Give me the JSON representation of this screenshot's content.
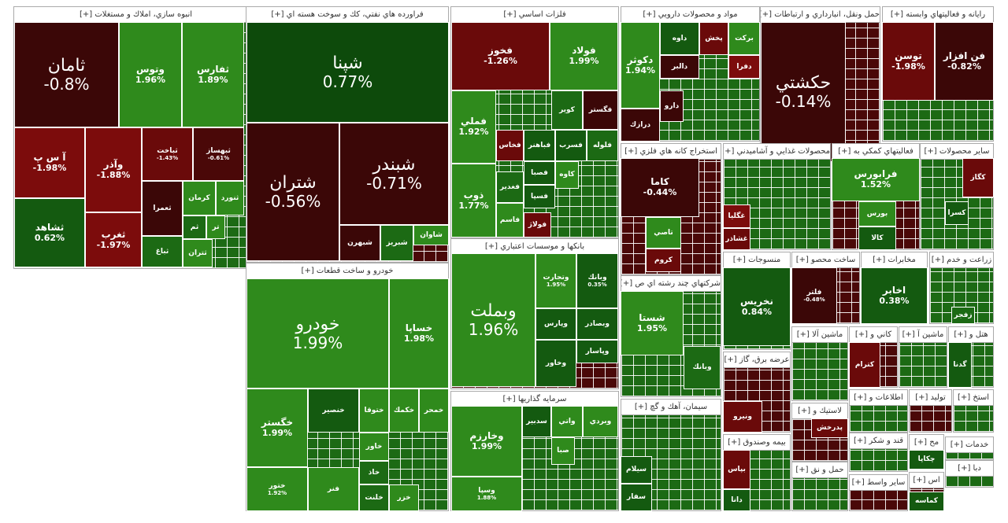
{
  "sectors": [
    {
      "title": "انبوه سازي، املاك و مستغلات [+]",
      "tiles": [
        {
          "name": "ثامان",
          "change": "-0.8%",
          "color": "#3b0707"
        },
        {
          "name": "وتوس",
          "change": "1.96%",
          "color": "#2f8a1c"
        },
        {
          "name": "ثفارس",
          "change": "1.89%",
          "color": "#2f8a1c"
        },
        {
          "name": "آ س پ",
          "change": "-1.98%",
          "color": "#7c0c0c"
        },
        {
          "name": "ثشاهد",
          "change": "0.62%",
          "color": "#145a10"
        },
        {
          "name": "وآذر",
          "change": "-1.88%",
          "color": "#7c0c0c"
        },
        {
          "name": "ثغرب",
          "change": "-1.97%",
          "color": "#7c0c0c"
        },
        {
          "name": "ثباخت",
          "change": "-1.43%",
          "color": "#6a0a0a"
        },
        {
          "name": "ثبهساز",
          "change": "-0.61%",
          "color": "#4a0808"
        },
        {
          "name": "ثعمرا",
          "color": "#3b0707"
        },
        {
          "name": "كرمان",
          "color": "#2f8a1c"
        },
        {
          "name": "ثنورد",
          "color": "#2f8a1c"
        },
        {
          "name": "ثم",
          "color": "#1c6a14"
        },
        {
          "name": "تر",
          "color": "#2f8a1c"
        },
        {
          "name": "ثباغ",
          "color": "#1c6a14"
        },
        {
          "name": "ثتران",
          "color": "#2f8a1c"
        }
      ]
    },
    {
      "title": "فراورده هاي نفتي، كك و سوخت هسته اي [+]",
      "tiles": [
        {
          "name": "شپنا",
          "change": "0.77%",
          "color": "#0d4a0b"
        },
        {
          "name": "شتران",
          "change": "-0.56%",
          "color": "#3b0707"
        },
        {
          "name": "شبندر",
          "change": "-0.71%",
          "color": "#3b0707"
        },
        {
          "name": "شبهرن",
          "color": "#3b0707"
        },
        {
          "name": "شبريز",
          "color": "#1c6a14"
        },
        {
          "name": "شاوان",
          "color": "#2f8a1c"
        }
      ]
    },
    {
      "title": "خودرو و ساخت قطعات [+]",
      "tiles": [
        {
          "name": "خودرو",
          "change": "1.99%",
          "color": "#2f8a1c"
        },
        {
          "name": "خساپا",
          "change": "1.98%",
          "color": "#2f8a1c"
        },
        {
          "name": "خگستر",
          "change": "1.99%",
          "color": "#2f8a1c"
        },
        {
          "name": "خنصير",
          "color": "#145a10"
        },
        {
          "name": "ختوقا",
          "color": "#2f8a1c"
        },
        {
          "name": "خكمك",
          "color": "#2f8a1c"
        },
        {
          "name": "خمحر",
          "color": "#2f8a1c"
        },
        {
          "name": "خاور",
          "color": "#2f8a1c"
        },
        {
          "name": "خاذ",
          "color": "#1c6a14"
        },
        {
          "name": "خلنت",
          "color": "#1c6a14"
        },
        {
          "name": "فنر",
          "color": "#2f8a1c"
        },
        {
          "name": "خزر",
          "color": "#2f8a1c"
        },
        {
          "name": "ختور",
          "change": "1.92%",
          "color": "#2f8a1c"
        }
      ]
    },
    {
      "title": "فلزات اساسي [+]",
      "tiles": [
        {
          "name": "فخوز",
          "change": "-1.26%",
          "color": "#6a0a0a"
        },
        {
          "name": "فولاد",
          "change": "1.99%",
          "color": "#2f8a1c"
        },
        {
          "name": "فملي",
          "change": "1.92%",
          "color": "#2f8a1c"
        },
        {
          "name": "ذوب",
          "change": "1.77%",
          "color": "#2f8a1c"
        },
        {
          "name": "كوير",
          "color": "#1c6a14"
        },
        {
          "name": "فگستر",
          "color": "#3b0707"
        },
        {
          "name": "فخاس",
          "color": "#6a0a0a"
        },
        {
          "name": "فباهنر",
          "color": "#145a10"
        },
        {
          "name": "فسرب",
          "color": "#145a10"
        },
        {
          "name": "فلوله",
          "color": "#1c6a14"
        },
        {
          "name": "فغدير",
          "color": "#1c6a14"
        },
        {
          "name": "فصبا",
          "color": "#145a10"
        },
        {
          "name": "كاوه",
          "color": "#2f8a1c"
        },
        {
          "name": "فسپا",
          "color": "#145a10"
        },
        {
          "name": "فاسم",
          "color": "#2f8a1c"
        },
        {
          "name": "فولاژ",
          "color": "#6a0a0a"
        }
      ]
    },
    {
      "title": "بانكها و موسسات اعتباري [+]",
      "tiles": [
        {
          "name": "وبملت",
          "change": "1.96%",
          "color": "#2f8a1c"
        },
        {
          "name": "وتجارت",
          "change": "1.95%",
          "color": "#2f8a1c"
        },
        {
          "name": "وبانك",
          "change": "0.35%",
          "color": "#145a10"
        },
        {
          "name": "وپارس",
          "color": "#145a10"
        },
        {
          "name": "وبصادر",
          "color": "#145a10"
        },
        {
          "name": "وپاسار",
          "color": "#145a10"
        },
        {
          "name": "وخاور",
          "color": "#145a10"
        }
      ]
    },
    {
      "title": "سرمايه گذاريها [+]",
      "tiles": [
        {
          "name": "وخارزم",
          "change": "1.99%",
          "color": "#2f8a1c"
        },
        {
          "name": "وسپا",
          "change": "1.88%",
          "color": "#2f8a1c"
        },
        {
          "name": "سدبير",
          "color": "#145a10"
        },
        {
          "name": "واتي",
          "color": "#2f8a1c"
        },
        {
          "name": "وبردي",
          "color": "#2f8a1c"
        },
        {
          "name": "صبا",
          "color": "#2f8a1c"
        }
      ]
    },
    {
      "title": "مواد و محصولات دارويي [+]",
      "tiles": [
        {
          "name": "دكوثر",
          "change": "1.94%",
          "color": "#2f8a1c"
        },
        {
          "name": "داوه",
          "color": "#145a10"
        },
        {
          "name": "پخش",
          "color": "#6a0a0a"
        },
        {
          "name": "بركت",
          "color": "#2f8a1c"
        },
        {
          "name": "دالبر",
          "color": "#3b0707"
        },
        {
          "name": "دفرا",
          "color": "#7c0c0c"
        },
        {
          "name": "درازك",
          "color": "#3b0707"
        },
        {
          "name": "دارو",
          "color": "#3b0707"
        }
      ]
    },
    {
      "title": "استخراج كانه هاي فلزي [+]",
      "tiles": [
        {
          "name": "كاما",
          "change": "-0.44%",
          "color": "#3b0707"
        },
        {
          "name": "تاصي",
          "color": "#2f8a1c"
        },
        {
          "name": "كروم",
          "color": "#6a0a0a"
        }
      ]
    },
    {
      "title": "شركتهاي چند رشته اي ص [+]",
      "tiles": [
        {
          "name": "شستا",
          "change": "1.95%",
          "color": "#2f8a1c"
        },
        {
          "name": "وبانك",
          "color": "#1c6a14"
        }
      ]
    },
    {
      "title": "سيمان، آهك و گچ [+]",
      "tiles": [
        {
          "name": "سيلام",
          "color": "#145a10"
        },
        {
          "name": "سفار",
          "color": "#145a10"
        }
      ]
    },
    {
      "title": "حمل ونقل، انبارداري و ارتباطات [+]",
      "tiles": [
        {
          "name": "حكشتي",
          "change": "-0.14%",
          "color": "#3b0707"
        }
      ]
    },
    {
      "title": "رايانه و فعاليتهاي وابسته [+]",
      "tiles": [
        {
          "name": "توسن",
          "change": "-1.98%",
          "color": "#6a0a0a"
        },
        {
          "name": "فن افزار",
          "change": "-0.82%",
          "color": "#3b0707"
        }
      ]
    },
    {
      "title": "محصولات غذايي و آشاميدني [+]",
      "tiles": [
        {
          "name": "غگليا",
          "color": "#7c0c0c"
        },
        {
          "name": "غشاذر",
          "color": "#6a0a0a"
        }
      ]
    },
    {
      "title": "فعاليتهاي كمكي به [+]",
      "tiles": [
        {
          "name": "فرابورس",
          "change": "1.52%",
          "color": "#2f8a1c"
        },
        {
          "name": "بورس",
          "color": "#2f8a1c"
        },
        {
          "name": "كالا",
          "color": "#145a10"
        }
      ]
    },
    {
      "title": "ساير محصولات [+]",
      "tiles": [
        {
          "name": "كگاز",
          "color": "#6a0a0a"
        },
        {
          "name": "كسرا",
          "color": "#145a10"
        }
      ]
    },
    {
      "title": "منسوجات [+]",
      "tiles": [
        {
          "name": "نخريس",
          "change": "0.84%",
          "color": "#145a10"
        }
      ]
    },
    {
      "title": "ساخت محصو [+]",
      "tiles": [
        {
          "name": "فلتر",
          "change": "-0.48%",
          "color": "#3b0707"
        }
      ]
    },
    {
      "title": "مخابرات [+]",
      "tiles": [
        {
          "name": "اخابر",
          "change": "0.38%",
          "color": "#145a10"
        }
      ]
    },
    {
      "title": "زراعت و خدم [+]",
      "tiles": [
        {
          "name": "زفجر",
          "color": "#1c6a14"
        }
      ]
    },
    {
      "title": "عرضه برق، گاز [+]",
      "tiles": [
        {
          "name": "ونيرو",
          "color": "#6a0a0a"
        }
      ]
    },
    {
      "title": "بيمه وصندوق [+]",
      "tiles": [
        {
          "name": "بپاس",
          "color": "#6a0a0a"
        },
        {
          "name": "دانا",
          "color": "#145a10"
        }
      ]
    },
    {
      "title": "ماشين آلا [+]",
      "tiles": []
    },
    {
      "title": "كاني و [+]",
      "tiles": [
        {
          "name": "كترام",
          "color": "#6a0a0a"
        }
      ]
    },
    {
      "title": "ماشين آ [+]",
      "tiles": []
    },
    {
      "title": "هتل و [+]",
      "tiles": [
        {
          "name": "گدنا",
          "color": "#145a10"
        }
      ]
    },
    {
      "title": "لاستيك و [+]",
      "tiles": [
        {
          "name": "پدرخش",
          "color": "#6a0a0a"
        }
      ]
    },
    {
      "title": "حمل و نق [+]",
      "tiles": []
    },
    {
      "title": "اطلاعات و [+]",
      "tiles": []
    },
    {
      "title": "توليد [+]",
      "tiles": []
    },
    {
      "title": "استخ [+]",
      "tiles": []
    },
    {
      "title": "قند و شكر [+]",
      "tiles": []
    },
    {
      "title": "ساير واسط [+]",
      "tiles": []
    },
    {
      "title": "مح [+]",
      "tiles": [
        {
          "name": "چكاپا",
          "color": "#145a10"
        }
      ]
    },
    {
      "title": "خدمات [+]",
      "tiles": []
    },
    {
      "title": "اس [+]",
      "tiles": [
        {
          "name": "كماسه",
          "color": "#145a10"
        }
      ]
    },
    {
      "title": "دبا [+]",
      "tiles": []
    }
  ]
}
